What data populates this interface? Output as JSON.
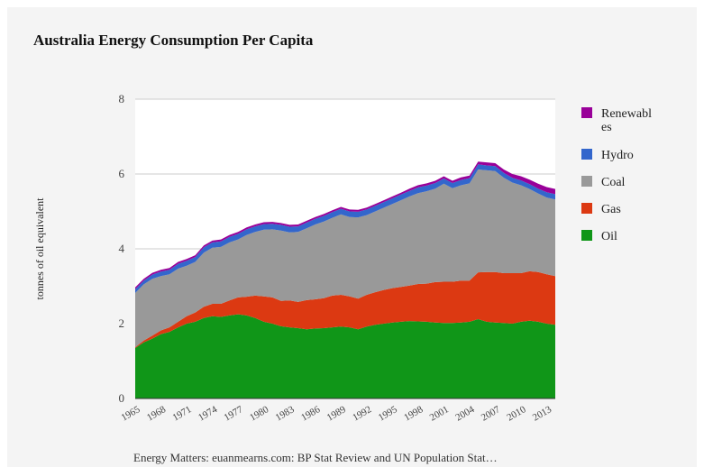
{
  "chart_data": {
    "type": "area",
    "stacked": true,
    "title": "Australia Energy Consumption Per Capita",
    "ylabel": "tonnes of oil equivalent",
    "xlabel": "",
    "source": "Energy Matters: euanmearns.com: BP Stat Review and UN Population Stat…",
    "ylim": [
      0,
      8
    ],
    "yticks": [
      0,
      2,
      4,
      6,
      8
    ],
    "grid": true,
    "legend_position": "right",
    "x": [
      1965,
      1966,
      1967,
      1968,
      1969,
      1970,
      1971,
      1972,
      1973,
      1974,
      1975,
      1976,
      1977,
      1978,
      1979,
      1980,
      1981,
      1982,
      1983,
      1984,
      1985,
      1986,
      1987,
      1988,
      1989,
      1990,
      1991,
      1992,
      1993,
      1994,
      1995,
      1996,
      1997,
      1998,
      1999,
      2000,
      2001,
      2002,
      2003,
      2004,
      2005,
      2006,
      2007,
      2008,
      2009,
      2010,
      2011,
      2012,
      2013,
      2014
    ],
    "xticks": [
      "1965",
      "1968",
      "1971",
      "1974",
      "1977",
      "1980",
      "1983",
      "1986",
      "1989",
      "1992",
      "1995",
      "1998",
      "2001",
      "2004",
      "2007",
      "2010",
      "2013"
    ],
    "series": [
      {
        "name": "Oil",
        "color": "#109618",
        "values": [
          1.35,
          1.5,
          1.6,
          1.72,
          1.78,
          1.9,
          2.0,
          2.05,
          2.15,
          2.2,
          2.18,
          2.22,
          2.25,
          2.22,
          2.15,
          2.05,
          2.0,
          1.93,
          1.9,
          1.88,
          1.85,
          1.87,
          1.88,
          1.9,
          1.92,
          1.9,
          1.85,
          1.92,
          1.97,
          2.0,
          2.03,
          2.05,
          2.07,
          2.06,
          2.05,
          2.03,
          2.02,
          2.02,
          2.03,
          2.05,
          2.12,
          2.05,
          2.03,
          2.02,
          2.0,
          2.05,
          2.08,
          2.05,
          2.0,
          1.97
        ]
      },
      {
        "name": "Gas",
        "color": "#dc3912",
        "values": [
          0.02,
          0.05,
          0.08,
          0.1,
          0.12,
          0.15,
          0.2,
          0.25,
          0.3,
          0.33,
          0.35,
          0.4,
          0.45,
          0.5,
          0.6,
          0.68,
          0.7,
          0.68,
          0.72,
          0.7,
          0.78,
          0.78,
          0.8,
          0.85,
          0.85,
          0.83,
          0.82,
          0.85,
          0.87,
          0.9,
          0.92,
          0.93,
          0.95,
          1.0,
          1.02,
          1.08,
          1.1,
          1.1,
          1.12,
          1.1,
          1.25,
          1.33,
          1.35,
          1.33,
          1.35,
          1.3,
          1.32,
          1.33,
          1.32,
          1.3
        ]
      },
      {
        "name": "Coal",
        "color": "#999999",
        "values": [
          1.45,
          1.5,
          1.52,
          1.45,
          1.42,
          1.42,
          1.35,
          1.35,
          1.45,
          1.5,
          1.52,
          1.55,
          1.55,
          1.65,
          1.7,
          1.78,
          1.82,
          1.88,
          1.82,
          1.87,
          1.92,
          2.0,
          2.05,
          2.08,
          2.15,
          2.12,
          2.17,
          2.13,
          2.16,
          2.2,
          2.25,
          2.32,
          2.38,
          2.43,
          2.47,
          2.5,
          2.62,
          2.5,
          2.55,
          2.6,
          2.75,
          2.72,
          2.7,
          2.55,
          2.42,
          2.35,
          2.2,
          2.1,
          2.05,
          2.05
        ]
      },
      {
        "name": "Hydro",
        "color": "#3366cc",
        "values": [
          0.1,
          0.1,
          0.11,
          0.12,
          0.12,
          0.13,
          0.13,
          0.13,
          0.14,
          0.14,
          0.15,
          0.15,
          0.15,
          0.15,
          0.15,
          0.15,
          0.15,
          0.15,
          0.15,
          0.15,
          0.15,
          0.15,
          0.15,
          0.15,
          0.15,
          0.15,
          0.15,
          0.15,
          0.15,
          0.15,
          0.15,
          0.15,
          0.15,
          0.15,
          0.15,
          0.15,
          0.14,
          0.14,
          0.14,
          0.14,
          0.14,
          0.13,
          0.13,
          0.13,
          0.13,
          0.13,
          0.13,
          0.13,
          0.14,
          0.14
        ]
      },
      {
        "name": "Renewables",
        "color": "#990099",
        "values": [
          0.05,
          0.05,
          0.05,
          0.05,
          0.05,
          0.05,
          0.05,
          0.05,
          0.05,
          0.05,
          0.05,
          0.05,
          0.05,
          0.05,
          0.05,
          0.05,
          0.05,
          0.05,
          0.05,
          0.05,
          0.05,
          0.05,
          0.05,
          0.05,
          0.05,
          0.05,
          0.05,
          0.05,
          0.05,
          0.05,
          0.05,
          0.05,
          0.06,
          0.06,
          0.06,
          0.06,
          0.06,
          0.06,
          0.07,
          0.07,
          0.07,
          0.08,
          0.08,
          0.09,
          0.1,
          0.11,
          0.12,
          0.13,
          0.14,
          0.14
        ]
      }
    ],
    "legend": [
      {
        "label": "Renewabl",
        "label2": "es",
        "color": "#990099"
      },
      {
        "label": "Hydro",
        "color": "#3366cc"
      },
      {
        "label": "Coal",
        "color": "#999999"
      },
      {
        "label": "Gas",
        "color": "#dc3912"
      },
      {
        "label": "Oil",
        "color": "#109618"
      }
    ]
  }
}
